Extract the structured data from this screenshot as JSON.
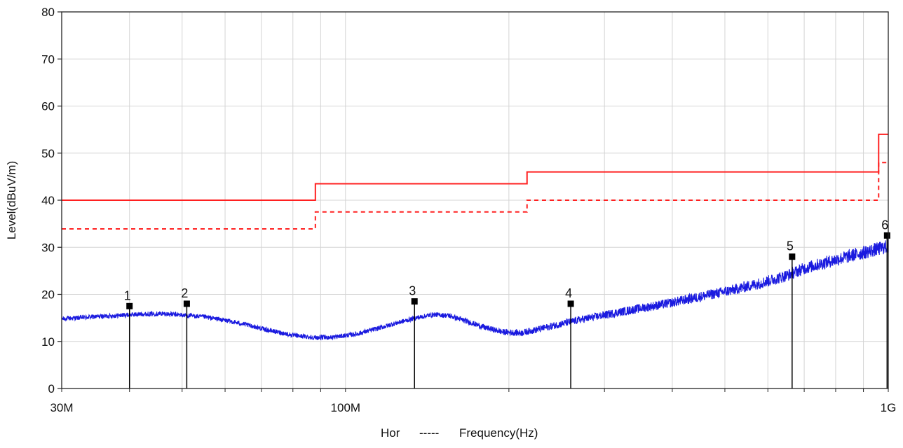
{
  "chart_data": {
    "type": "line",
    "title": "",
    "xlabel": "Frequency(Hz)",
    "xlabel_prefix": "Hor",
    "xlabel_separator": "-----",
    "ylabel": "Level(dBuV/m)",
    "xscale": "log",
    "xlim_hz": [
      30000000,
      1000000000
    ],
    "ylim": [
      0,
      80
    ],
    "grid": true,
    "x_tick_labels": [
      {
        "hz": 30000000,
        "label": "30M"
      },
      {
        "hz": 100000000,
        "label": "100M"
      },
      {
        "hz": 1000000000,
        "label": "1G"
      }
    ],
    "y_tick_labels": [
      "0",
      "10",
      "20",
      "30",
      "40",
      "50",
      "60",
      "70",
      "80"
    ],
    "colors": {
      "measurement": "#1a1adf",
      "limit": "#ff2020",
      "markers": "#000000",
      "grid": "#d4d4d4"
    },
    "series": [
      {
        "style": "solid-red",
        "points": [
          [
            30000000,
            40
          ],
          [
            88000000,
            40
          ],
          [
            88000000,
            43.5
          ],
          [
            216000000,
            43.5
          ],
          [
            216000000,
            46
          ],
          [
            960000000,
            46
          ],
          [
            960000000,
            54
          ],
          [
            1000000000,
            54
          ]
        ]
      },
      {
        "style": "dashed-red",
        "points": [
          [
            30000000,
            33.9
          ],
          [
            88000000,
            33.9
          ],
          [
            88000000,
            37.5
          ],
          [
            216000000,
            37.5
          ],
          [
            216000000,
            40
          ],
          [
            960000000,
            40
          ],
          [
            960000000,
            48
          ],
          [
            1000000000,
            48
          ]
        ]
      },
      {
        "style": "blue-noise",
        "envelope": [
          [
            30000000,
            14.8
          ],
          [
            34000000,
            15.2
          ],
          [
            38000000,
            15.5
          ],
          [
            42000000,
            15.8
          ],
          [
            46000000,
            15.9
          ],
          [
            50000000,
            15.6
          ],
          [
            55000000,
            15.2
          ],
          [
            60000000,
            14.5
          ],
          [
            66000000,
            13.5
          ],
          [
            72000000,
            12.4
          ],
          [
            80000000,
            11.3
          ],
          [
            88000000,
            10.8
          ],
          [
            95000000,
            10.9
          ],
          [
            105000000,
            11.6
          ],
          [
            115000000,
            12.8
          ],
          [
            125000000,
            14.0
          ],
          [
            135000000,
            15.0
          ],
          [
            145000000,
            15.7
          ],
          [
            155000000,
            15.5
          ],
          [
            165000000,
            14.5
          ],
          [
            180000000,
            13.0
          ],
          [
            195000000,
            12.0
          ],
          [
            210000000,
            11.8
          ],
          [
            225000000,
            12.5
          ],
          [
            245000000,
            13.5
          ],
          [
            270000000,
            14.6
          ],
          [
            300000000,
            15.6
          ],
          [
            340000000,
            16.8
          ],
          [
            390000000,
            18.0
          ],
          [
            450000000,
            19.5
          ],
          [
            520000000,
            21.0
          ],
          [
            600000000,
            22.8
          ],
          [
            650000000,
            24.0
          ],
          [
            700000000,
            25.5
          ],
          [
            780000000,
            27.0
          ],
          [
            860000000,
            28.3
          ],
          [
            940000000,
            29.4
          ],
          [
            1000000000,
            30.2
          ]
        ]
      }
    ],
    "markers": [
      {
        "label": "1",
        "hz": 40000000,
        "value": 17.5
      },
      {
        "label": "2",
        "hz": 51000000,
        "value": 18.0
      },
      {
        "label": "3",
        "hz": 134000000,
        "value": 18.5
      },
      {
        "label": "4",
        "hz": 260000000,
        "value": 18.0
      },
      {
        "label": "5",
        "hz": 665000000,
        "value": 28.0
      },
      {
        "label": "6",
        "hz": 995000000,
        "value": 32.5
      }
    ]
  }
}
